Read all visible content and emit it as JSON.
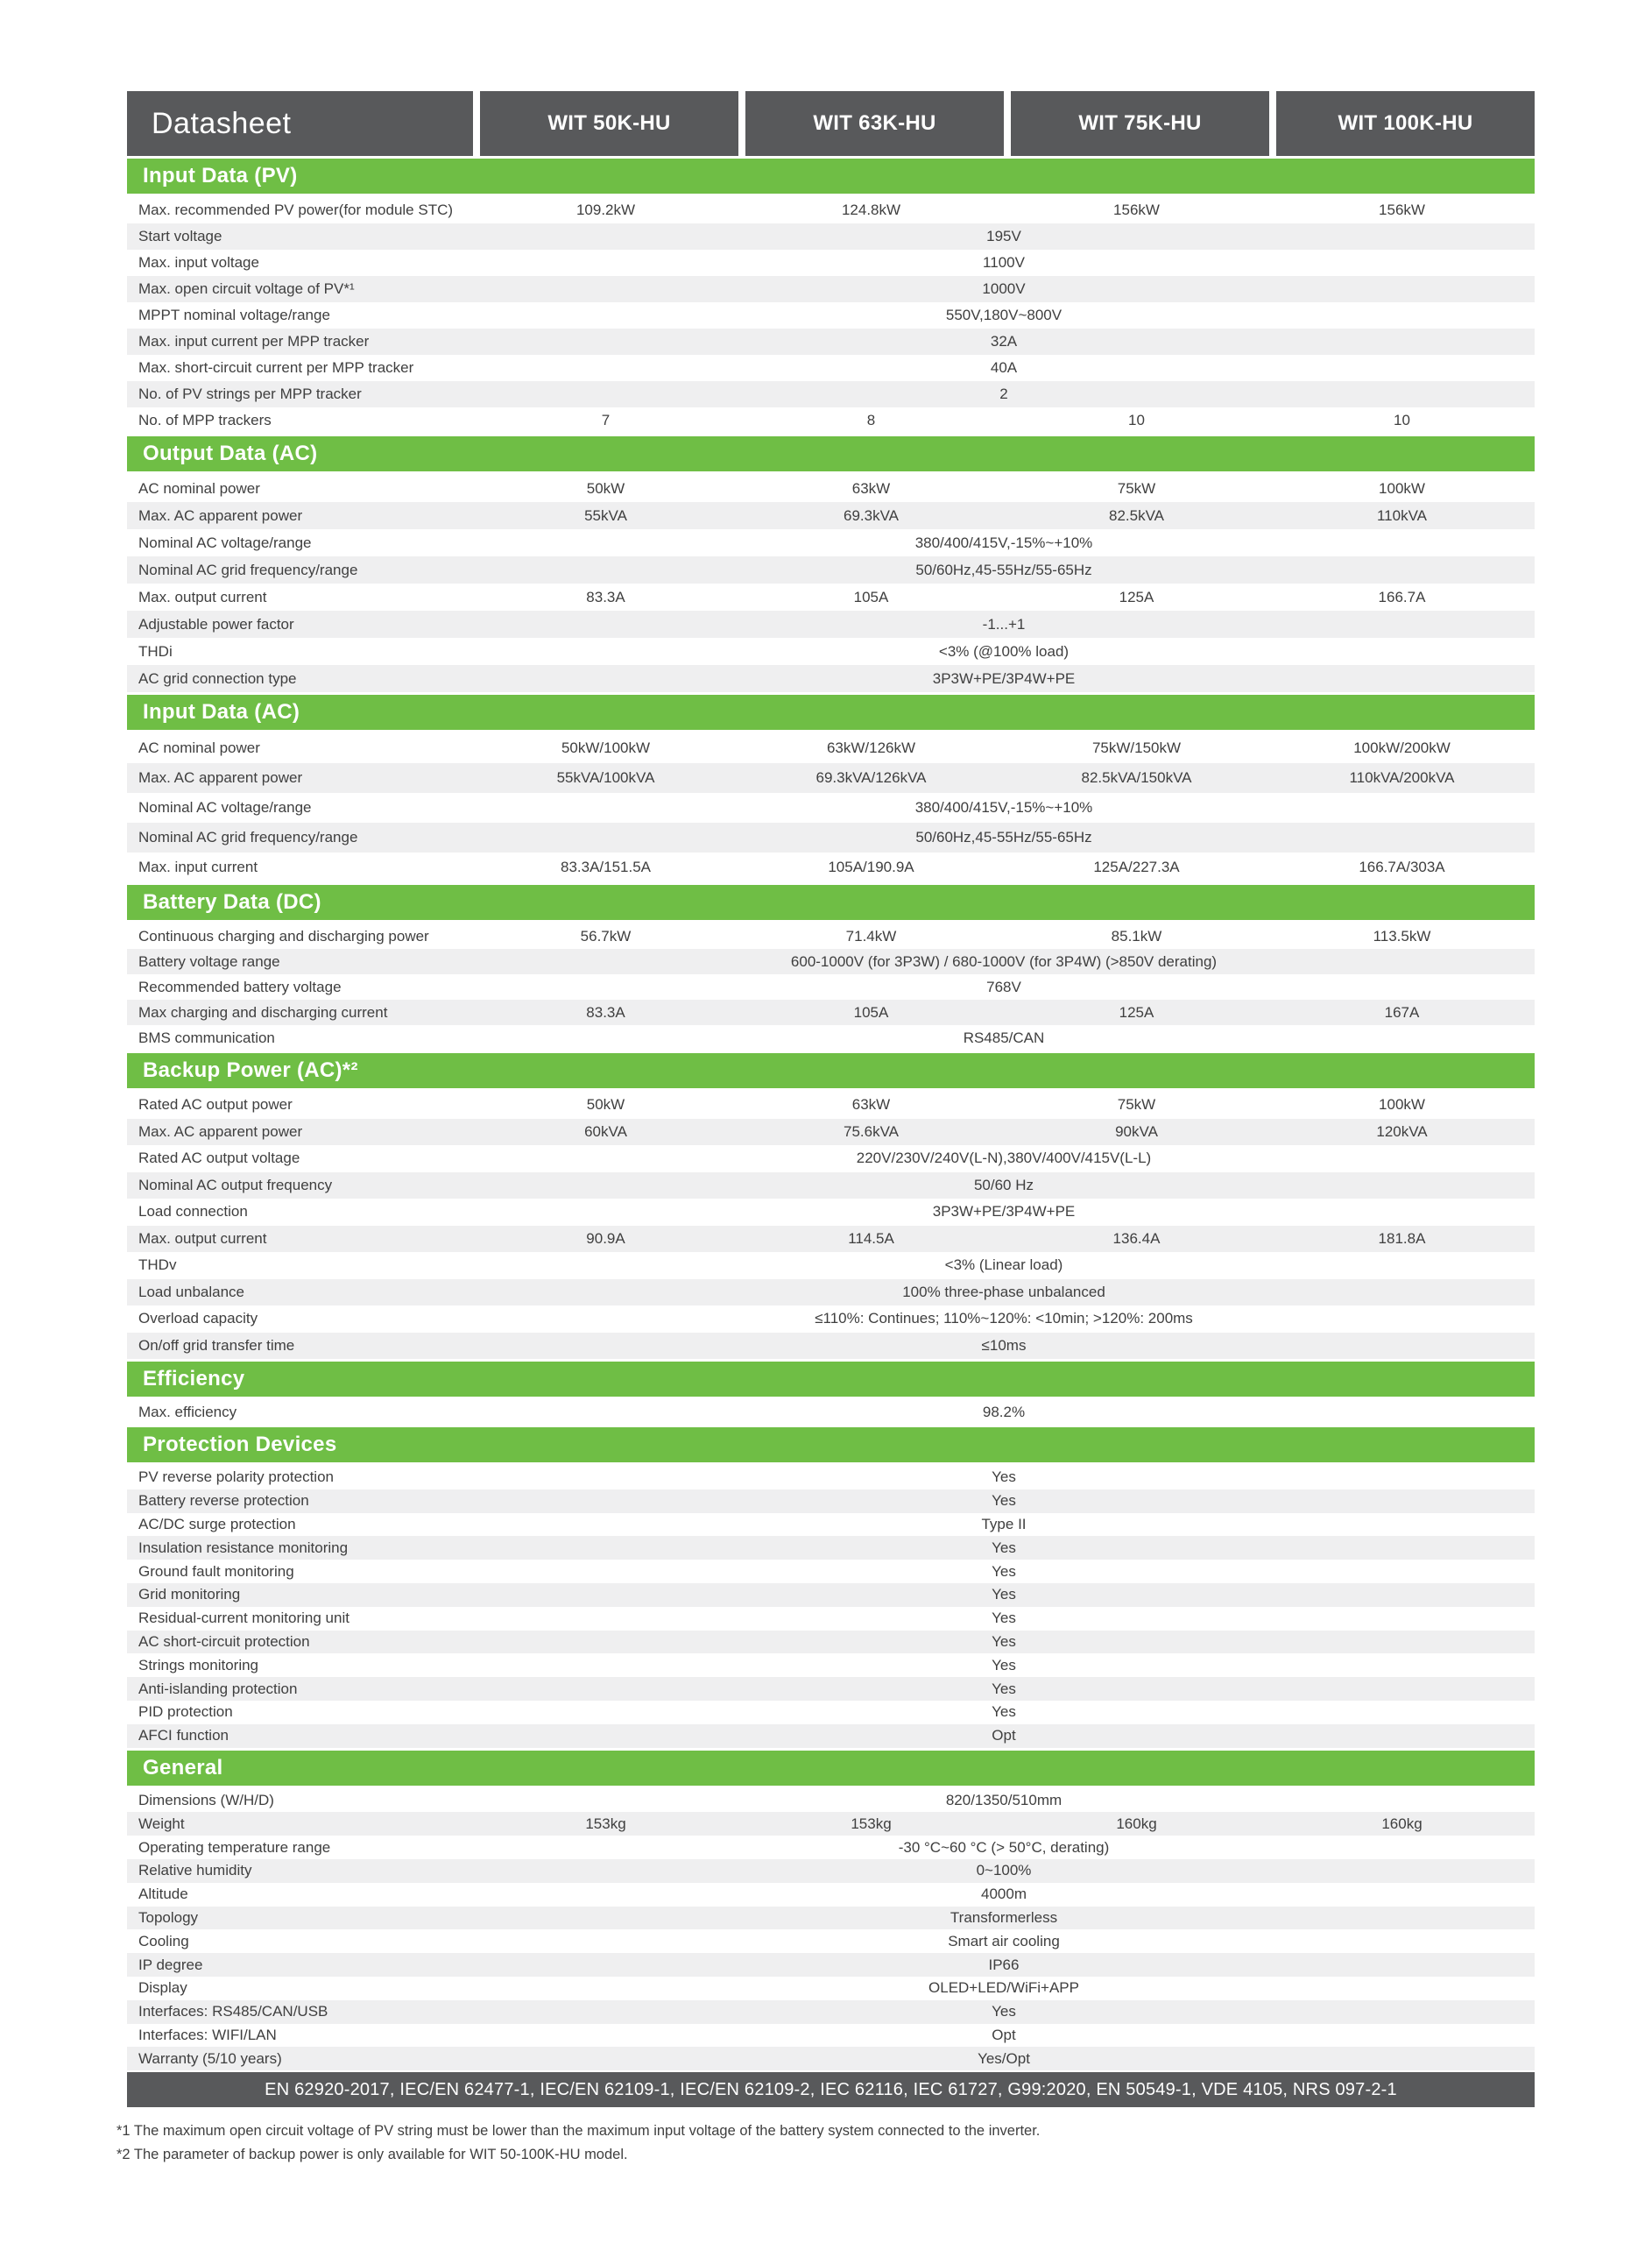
{
  "header": {
    "title": "Datasheet",
    "models": [
      "WIT 50K-HU",
      "WIT 63K-HU",
      "WIT 75K-HU",
      "WIT 100K-HU"
    ]
  },
  "colors": {
    "accent_green": "#6fbe45",
    "header_dark": "#58595b",
    "row_stripe": "#efeff0"
  },
  "sections": [
    {
      "title": "Input Data (PV)",
      "rows": [
        {
          "label": "Max. recommended PV power(for module STC)",
          "values": [
            "109.2kW",
            "124.8kW",
            "156kW",
            "156kW"
          ]
        },
        {
          "label": "Start voltage",
          "span": "195V"
        },
        {
          "label": "Max. input voltage",
          "span": "1100V"
        },
        {
          "label": "Max. open circuit voltage of PV*¹",
          "span": "1000V"
        },
        {
          "label": "MPPT nominal voltage/range",
          "span": "550V,180V~800V"
        },
        {
          "label": "Max. input current per MPP tracker",
          "span": "32A"
        },
        {
          "label": "Max. short-circuit current per MPP tracker",
          "span": "40A"
        },
        {
          "label": "No. of PV strings per MPP tracker",
          "span": "2"
        },
        {
          "label": "No. of MPP trackers",
          "values": [
            "7",
            "8",
            "10",
            "10"
          ]
        }
      ]
    },
    {
      "title": "Output Data (AC)",
      "rows": [
        {
          "label": "AC nominal power",
          "values": [
            "50kW",
            "63kW",
            "75kW",
            "100kW"
          ]
        },
        {
          "label": "Max. AC apparent power",
          "values": [
            "55kVA",
            "69.3kVA",
            "82.5kVA",
            "110kVA"
          ]
        },
        {
          "label": "Nominal AC voltage/range",
          "span": "380/400/415V,-15%~+10%"
        },
        {
          "label": "Nominal AC grid frequency/range",
          "span": "50/60Hz,45-55Hz/55-65Hz"
        },
        {
          "label": "Max. output current",
          "values": [
            "83.3A",
            "105A",
            "125A",
            "166.7A"
          ]
        },
        {
          "label": "Adjustable power factor",
          "span": "-1...+1"
        },
        {
          "label": "THDi",
          "span": "<3% (@100% load)"
        },
        {
          "label": "AC grid connection type",
          "span": "3P3W+PE/3P4W+PE"
        }
      ]
    },
    {
      "title": "Input Data (AC)",
      "rows": [
        {
          "label": "AC nominal power",
          "values": [
            "50kW/100kW",
            "63kW/126kW",
            "75kW/150kW",
            "100kW/200kW"
          ]
        },
        {
          "label": "Max. AC apparent power",
          "values": [
            "55kVA/100kVA",
            "69.3kVA/126kVA",
            "82.5kVA/150kVA",
            "110kVA/200kVA"
          ]
        },
        {
          "label": "Nominal AC voltage/range",
          "span": "380/400/415V,-15%~+10%"
        },
        {
          "label": "Nominal AC grid frequency/range",
          "span": "50/60Hz,45-55Hz/55-65Hz"
        },
        {
          "label": "Max. input current",
          "values": [
            "83.3A/151.5A",
            "105A/190.9A",
            "125A/227.3A",
            "166.7A/303A"
          ]
        }
      ]
    },
    {
      "title": "Battery Data (DC)",
      "rows": [
        {
          "label": "Continuous charging and discharging power",
          "values": [
            "56.7kW",
            "71.4kW",
            "85.1kW",
            "113.5kW"
          ]
        },
        {
          "label": "Battery voltage range",
          "span": "600-1000V (for 3P3W) / 680-1000V (for 3P4W)  (>850V derating)"
        },
        {
          "label": "Recommended battery voltage",
          "span": "768V"
        },
        {
          "label": "Max charging and discharging current",
          "values": [
            "83.3A",
            "105A",
            "125A",
            "167A"
          ]
        },
        {
          "label": "BMS communication",
          "span": "RS485/CAN"
        }
      ]
    },
    {
      "title": "Backup Power (AC)*²",
      "rows": [
        {
          "label": "Rated AC output power",
          "values": [
            "50kW",
            "63kW",
            "75kW",
            "100kW"
          ]
        },
        {
          "label": "Max. AC apparent power",
          "values": [
            "60kVA",
            "75.6kVA",
            "90kVA",
            "120kVA"
          ]
        },
        {
          "label": "Rated AC output voltage",
          "span": "220V/230V/240V(L-N),380V/400V/415V(L-L)"
        },
        {
          "label": "Nominal AC output frequency",
          "span": "50/60 Hz"
        },
        {
          "label": "Load connection",
          "span": "3P3W+PE/3P4W+PE"
        },
        {
          "label": "Max. output current",
          "values": [
            "90.9A",
            "114.5A",
            "136.4A",
            "181.8A"
          ]
        },
        {
          "label": "THDv",
          "span": "<3%  (Linear load)"
        },
        {
          "label": "Load unbalance",
          "span": "100% three-phase unbalanced"
        },
        {
          "label": "Overload capacity",
          "span": "≤110%: Continues; 110%~120%: <10min; >120%: 200ms"
        },
        {
          "label": "On/off grid transfer time",
          "span": "≤10ms"
        }
      ]
    },
    {
      "title": "Efficiency",
      "rows": [
        {
          "label": "Max. efficiency",
          "span": "98.2%"
        }
      ]
    },
    {
      "title": "Protection Devices",
      "rows": [
        {
          "label": "PV reverse polarity protection",
          "span": "Yes"
        },
        {
          "label": "Battery reverse protection",
          "span": "Yes"
        },
        {
          "label": "AC/DC surge protection",
          "span": "Type II"
        },
        {
          "label": "Insulation resistance monitoring",
          "span": "Yes"
        },
        {
          "label": "Ground fault monitoring",
          "span": "Yes"
        },
        {
          "label": "Grid monitoring",
          "span": "Yes"
        },
        {
          "label": "Residual-current monitoring unit",
          "span": "Yes"
        },
        {
          "label": "AC short-circuit protection",
          "span": "Yes"
        },
        {
          "label": "Strings monitoring",
          "span": "Yes"
        },
        {
          "label": "Anti-islanding protection",
          "span": "Yes"
        },
        {
          "label": "PID protection",
          "span": "Yes"
        },
        {
          "label": "AFCI function",
          "span": "Opt"
        }
      ]
    },
    {
      "title": "General",
      "rows": [
        {
          "label": "Dimensions (W/H/D)",
          "span": "820/1350/510mm"
        },
        {
          "label": "Weight",
          "values": [
            "153kg",
            "153kg",
            "160kg",
            "160kg"
          ]
        },
        {
          "label": "Operating temperature range",
          "span": "-30 °C~60 °C (> 50°C, derating)"
        },
        {
          "label": "Relative humidity",
          "span": "0~100%"
        },
        {
          "label": "Altitude",
          "span": "4000m"
        },
        {
          "label": "Topology",
          "span": "Transformerless"
        },
        {
          "label": "Cooling",
          "span": "Smart air cooling"
        },
        {
          "label": "IP degree",
          "span": "IP66"
        },
        {
          "label": "Display",
          "span": "OLED+LED/WiFi+APP"
        },
        {
          "label": "Interfaces: RS485/CAN/USB",
          "span": "Yes"
        },
        {
          "label": "Interfaces: WIFI/LAN",
          "span": "Opt"
        },
        {
          "label": "Warranty (5/10 years)",
          "span": "Yes/Opt"
        }
      ]
    }
  ],
  "footer": {
    "certifications": "EN 62920-2017, IEC/EN 62477-1, IEC/EN 62109-1, IEC/EN 62109-2, IEC 62116, IEC 61727, G99:2020, EN 50549-1, VDE 4105, NRS 097-2-1",
    "notes": [
      "*1  The maximum open circuit voltage of PV string must be lower than the maximum input voltage of the battery system connected to the inverter.",
      "*2  The parameter of backup power is only available for WIT 50-100K-HU model."
    ]
  }
}
